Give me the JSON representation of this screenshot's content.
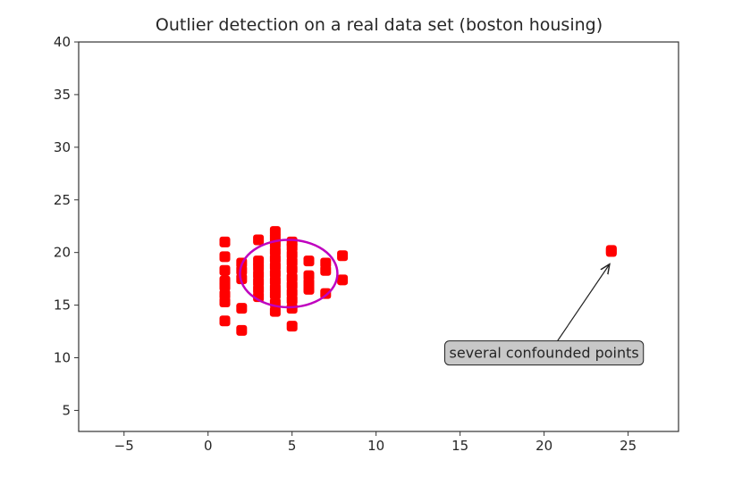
{
  "chart_data": {
    "type": "scatter",
    "title": "Outlier detection on a real data set (boston housing)",
    "xlabel": "",
    "ylabel": "",
    "xlim": [
      -7.7,
      28
    ],
    "ylim": [
      3,
      40
    ],
    "xticks": [
      -5,
      0,
      5,
      10,
      15,
      20,
      25
    ],
    "yticks": [
      5,
      10,
      15,
      20,
      25,
      30,
      35,
      40
    ],
    "point_color": "#ff0000",
    "points": [
      [
        1,
        13.5
      ],
      [
        1,
        15.3
      ],
      [
        1,
        16.0
      ],
      [
        1,
        16.8
      ],
      [
        1,
        17.3
      ],
      [
        1,
        18.3
      ],
      [
        1,
        19.6
      ],
      [
        1,
        21.0
      ],
      [
        2,
        12.6
      ],
      [
        2,
        14.7
      ],
      [
        2,
        17.5
      ],
      [
        2,
        18.3
      ],
      [
        2,
        19.0
      ],
      [
        3,
        15.8
      ],
      [
        3,
        16.5
      ],
      [
        3,
        17.2
      ],
      [
        3,
        17.9
      ],
      [
        3,
        18.6
      ],
      [
        3,
        19.2
      ],
      [
        3,
        21.2
      ],
      [
        4,
        14.4
      ],
      [
        4,
        15.2
      ],
      [
        4,
        16.0
      ],
      [
        4,
        16.6
      ],
      [
        4,
        17.3
      ],
      [
        4,
        18.0
      ],
      [
        4,
        18.7
      ],
      [
        4,
        19.4
      ],
      [
        4,
        20.1
      ],
      [
        4,
        20.8
      ],
      [
        4,
        21.4
      ],
      [
        4,
        22.0
      ],
      [
        5,
        13.0
      ],
      [
        5,
        14.7
      ],
      [
        5,
        15.5
      ],
      [
        5,
        16.2
      ],
      [
        5,
        16.9
      ],
      [
        5,
        17.6
      ],
      [
        5,
        18.4
      ],
      [
        5,
        19.1
      ],
      [
        5,
        19.8
      ],
      [
        5,
        20.5
      ],
      [
        5,
        21.0
      ],
      [
        6,
        16.5
      ],
      [
        6,
        17.1
      ],
      [
        6,
        17.8
      ],
      [
        6,
        19.2
      ],
      [
        7,
        16.1
      ],
      [
        7,
        18.3
      ],
      [
        7,
        19.0
      ],
      [
        8,
        17.4
      ],
      [
        8,
        19.7
      ],
      [
        24,
        20.2
      ],
      [
        24,
        20.1
      ]
    ],
    "ellipse": {
      "center": [
        4.8,
        18.0
      ],
      "rx": 2.9,
      "ry": 3.2,
      "color": "#bf00bf"
    },
    "annotation": {
      "text": "several confounded points",
      "xy": [
        23.9,
        18.9
      ],
      "xytext": [
        20,
        10.5
      ]
    }
  }
}
